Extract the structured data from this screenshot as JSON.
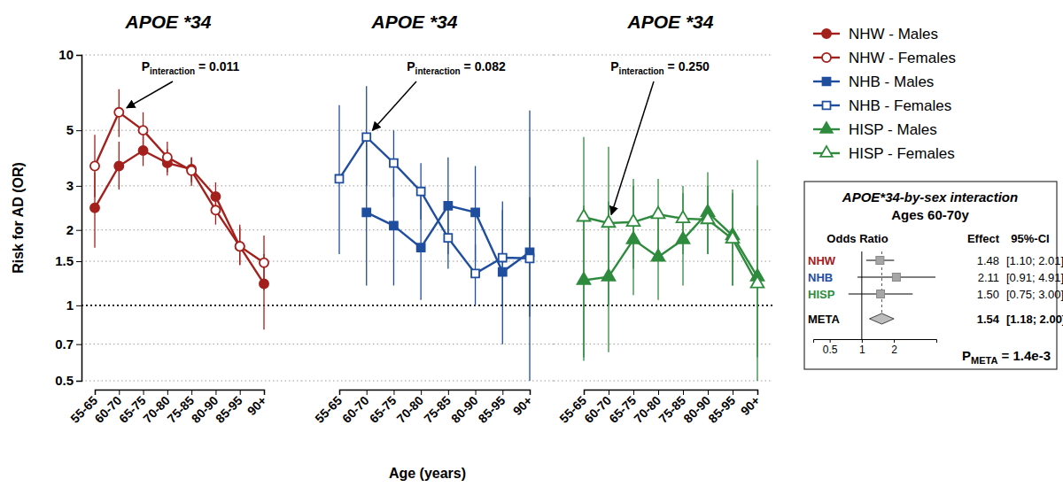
{
  "chart_data": [
    {
      "type": "line",
      "title": "APOE *34",
      "log": "y",
      "grid": true,
      "legend": "right",
      "y_label": "Risk for AD (OR)",
      "categories": [
        "55-65",
        "60-70",
        "65-75",
        "70-80",
        "75-85",
        "80-90",
        "85-95",
        "90+"
      ],
      "ylim": [
        0.5,
        10
      ],
      "yticks": [
        0.5,
        0.7,
        1,
        1.5,
        2,
        3,
        5,
        10
      ],
      "annotation": {
        "text": "P",
        "subscript": "interaction",
        "suffix": " = 0.011"
      },
      "series": [
        {
          "name": "NHW - Males",
          "color": "#a3201d",
          "marker": "circle",
          "values": [
            2.45,
            3.6,
            4.15,
            3.7,
            3.5,
            2.72,
            1.72,
            1.22
          ],
          "ci_lower": [
            1.7,
            2.9,
            3.6,
            3.3,
            3.1,
            2.4,
            1.45,
            0.8
          ],
          "ci_upper": [
            3.4,
            4.5,
            4.8,
            4.2,
            3.9,
            3.1,
            2.05,
            1.6
          ]
        },
        {
          "name": "NHW - Females",
          "color": "#a3201d",
          "marker": "circle-open",
          "values": [
            3.6,
            5.9,
            5.0,
            3.9,
            3.45,
            2.4,
            1.72,
            1.48
          ],
          "ci_lower": [
            2.7,
            4.7,
            4.3,
            3.4,
            3.0,
            2.1,
            1.45,
            1.15
          ],
          "ci_upper": [
            4.8,
            7.3,
            5.9,
            4.5,
            3.9,
            2.8,
            2.1,
            1.9
          ]
        }
      ]
    },
    {
      "type": "line",
      "title": "APOE *34",
      "log": "y",
      "grid": true,
      "tick_labels": "x",
      "x_label": "Age (years)",
      "categories": [
        "55-65",
        "60-70",
        "65-75",
        "70-80",
        "75-85",
        "80-90",
        "85-95",
        "90+"
      ],
      "ylim": [
        0.5,
        10
      ],
      "yticks": [
        0.5,
        0.7,
        1,
        1.5,
        2,
        3,
        5,
        10
      ],
      "annotation": {
        "text": "P",
        "subscript": "interaction",
        "suffix": " = 0.082"
      },
      "series": [
        {
          "name": "NHB - Males",
          "color": "#1f4e9e",
          "marker": "square",
          "values": [
            null,
            2.35,
            2.08,
            1.7,
            2.5,
            2.35,
            1.36,
            1.63
          ],
          "ci_lower": [
            null,
            1.2,
            1.2,
            1.05,
            1.6,
            1.5,
            0.7,
            0.46
          ],
          "ci_upper": [
            null,
            4.6,
            3.5,
            2.8,
            3.9,
            3.6,
            2.6,
            6.0
          ]
        },
        {
          "name": "NHB - Females",
          "color": "#1f4e9e",
          "marker": "square-open",
          "values": [
            3.2,
            4.7,
            3.7,
            2.85,
            1.86,
            1.34,
            1.55,
            1.54
          ],
          "ci_lower": [
            1.6,
            3.0,
            2.7,
            2.2,
            1.4,
            1.0,
            1.0,
            0.9
          ],
          "ci_upper": [
            6.3,
            7.5,
            5.0,
            3.7,
            2.5,
            1.75,
            2.4,
            2.7
          ]
        }
      ]
    },
    {
      "type": "line",
      "title": "APOE *34",
      "log": "y",
      "grid": true,
      "tick_labels": "x",
      "categories": [
        "55-65",
        "60-70",
        "65-75",
        "70-80",
        "75-85",
        "80-90",
        "85-95",
        "90+"
      ],
      "ylim": [
        0.5,
        10
      ],
      "yticks": [
        0.5,
        0.7,
        1,
        1.5,
        2,
        3,
        5,
        10
      ],
      "annotation": {
        "text": "P",
        "subscript": "interaction",
        "suffix": " = 0.250"
      },
      "series": [
        {
          "name": "HISP - Males",
          "color": "#2e8b3d",
          "marker": "triangle",
          "values": [
            1.26,
            1.3,
            1.83,
            1.56,
            1.83,
            2.35,
            1.9,
            1.3
          ],
          "ci_lower": [
            0.62,
            0.65,
            1.1,
            1.05,
            1.2,
            1.6,
            1.2,
            0.62
          ],
          "ci_upper": [
            2.5,
            2.6,
            3.0,
            2.3,
            2.8,
            3.4,
            2.9,
            2.5
          ]
        },
        {
          "name": "HISP - Females",
          "color": "#2e8b3d",
          "marker": "triangle-open",
          "values": [
            2.25,
            2.13,
            2.15,
            2.31,
            2.22,
            2.2,
            1.84,
            1.22
          ],
          "ci_lower": [
            0.6,
            1.0,
            1.4,
            1.6,
            1.6,
            1.6,
            1.2,
            0.45
          ],
          "ci_upper": [
            4.7,
            4.3,
            3.2,
            3.2,
            3.0,
            3.0,
            2.8,
            3.8
          ]
        }
      ]
    },
    {
      "type": "forest",
      "title": [
        "APOE*34-by-sex interaction",
        "Ages 60-70y"
      ],
      "log": "x",
      "columns": [
        "Odds Ratio",
        "Effect",
        "95%-CI"
      ],
      "categories": [
        "NHW",
        "NHB",
        "HISP",
        "META"
      ],
      "colors": [
        "#a3201d",
        "#1f4e9e",
        "#2e8b3d",
        "#000000"
      ],
      "values": [
        1.48,
        2.11,
        1.5,
        1.54
      ],
      "value_labels": [
        "1.48",
        "2.11",
        "1.50",
        "1.54"
      ],
      "ci_lower": [
        1.1,
        0.91,
        0.75,
        1.18
      ],
      "ci_upper": [
        2.01,
        4.91,
        3.0,
        2.0
      ],
      "ci_labels": [
        "[1.10; 2.01]",
        "[0.91; 4.91]",
        "[0.75; 3.00]",
        "[1.18; 2.00]"
      ],
      "xlim": [
        0.35,
        5
      ],
      "xticks": [
        0.5,
        1,
        2
      ],
      "annotation": {
        "text": "P",
        "subscript": "META",
        "suffix": " = 1.4e-3"
      }
    }
  ]
}
